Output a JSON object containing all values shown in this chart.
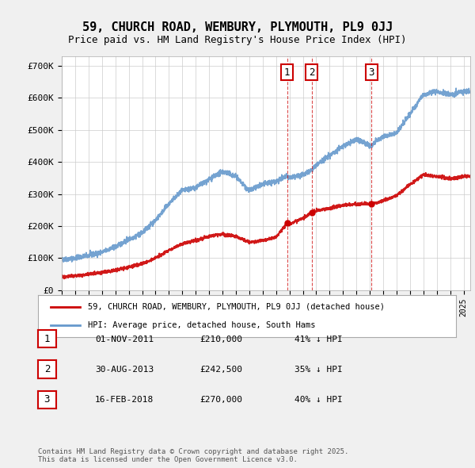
{
  "title": "59, CHURCH ROAD, WEMBURY, PLYMOUTH, PL9 0JJ",
  "subtitle": "Price paid vs. HM Land Registry's House Price Index (HPI)",
  "red_label": "59, CHURCH ROAD, WEMBURY, PLYMOUTH, PL9 0JJ (detached house)",
  "blue_label": "HPI: Average price, detached house, South Hams",
  "sale_points": [
    {
      "num": 1,
      "date": "01-NOV-2011",
      "price": 210000,
      "pct": "41%",
      "year": 2011.83
    },
    {
      "num": 2,
      "date": "30-AUG-2013",
      "price": 242500,
      "pct": "35%",
      "year": 2013.66
    },
    {
      "num": 3,
      "date": "16-FEB-2018",
      "price": 270000,
      "pct": "40%",
      "year": 2018.12
    }
  ],
  "footer": "Contains HM Land Registry data © Crown copyright and database right 2025.\nThis data is licensed under the Open Government Licence v3.0.",
  "yticks": [
    0,
    100000,
    200000,
    300000,
    400000,
    500000,
    600000,
    700000
  ],
  "ytick_labels": [
    "£0",
    "£100K",
    "£200K",
    "£300K",
    "£400K",
    "£500K",
    "£600K",
    "£700K"
  ],
  "xmin": 1995,
  "xmax": 2025.5,
  "ymin": 0,
  "ymax": 730000,
  "bg_color": "#f0f0f0",
  "plot_bg_color": "#ffffff",
  "red_color": "#cc0000",
  "blue_color": "#6699cc"
}
